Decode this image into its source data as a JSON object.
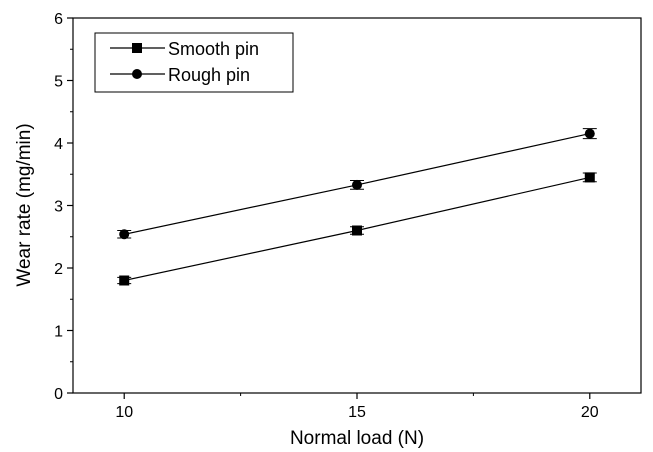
{
  "chart_data": {
    "type": "line",
    "xlabel": "Normal load (N)",
    "ylabel": "Wear rate (mg/min)",
    "xlim": [
      8.9,
      21.1
    ],
    "ylim": [
      0,
      6
    ],
    "x_ticks": [
      10,
      15,
      20
    ],
    "x_minor_ticks": [
      12.5,
      17.5
    ],
    "y_ticks": [
      0,
      1,
      2,
      3,
      4,
      5,
      6
    ],
    "grid": false,
    "legend_position": "top-left",
    "series": [
      {
        "name": "Smooth pin",
        "marker": "square",
        "color": "#000000",
        "x": [
          10,
          15,
          20
        ],
        "y": [
          1.8,
          2.6,
          3.45
        ],
        "error": [
          0.05,
          0.06,
          0.07
        ]
      },
      {
        "name": "Rough pin",
        "marker": "circle",
        "color": "#000000",
        "x": [
          10,
          15,
          20
        ],
        "y": [
          2.54,
          3.33,
          4.15
        ],
        "error": [
          0.06,
          0.07,
          0.08
        ]
      }
    ]
  }
}
